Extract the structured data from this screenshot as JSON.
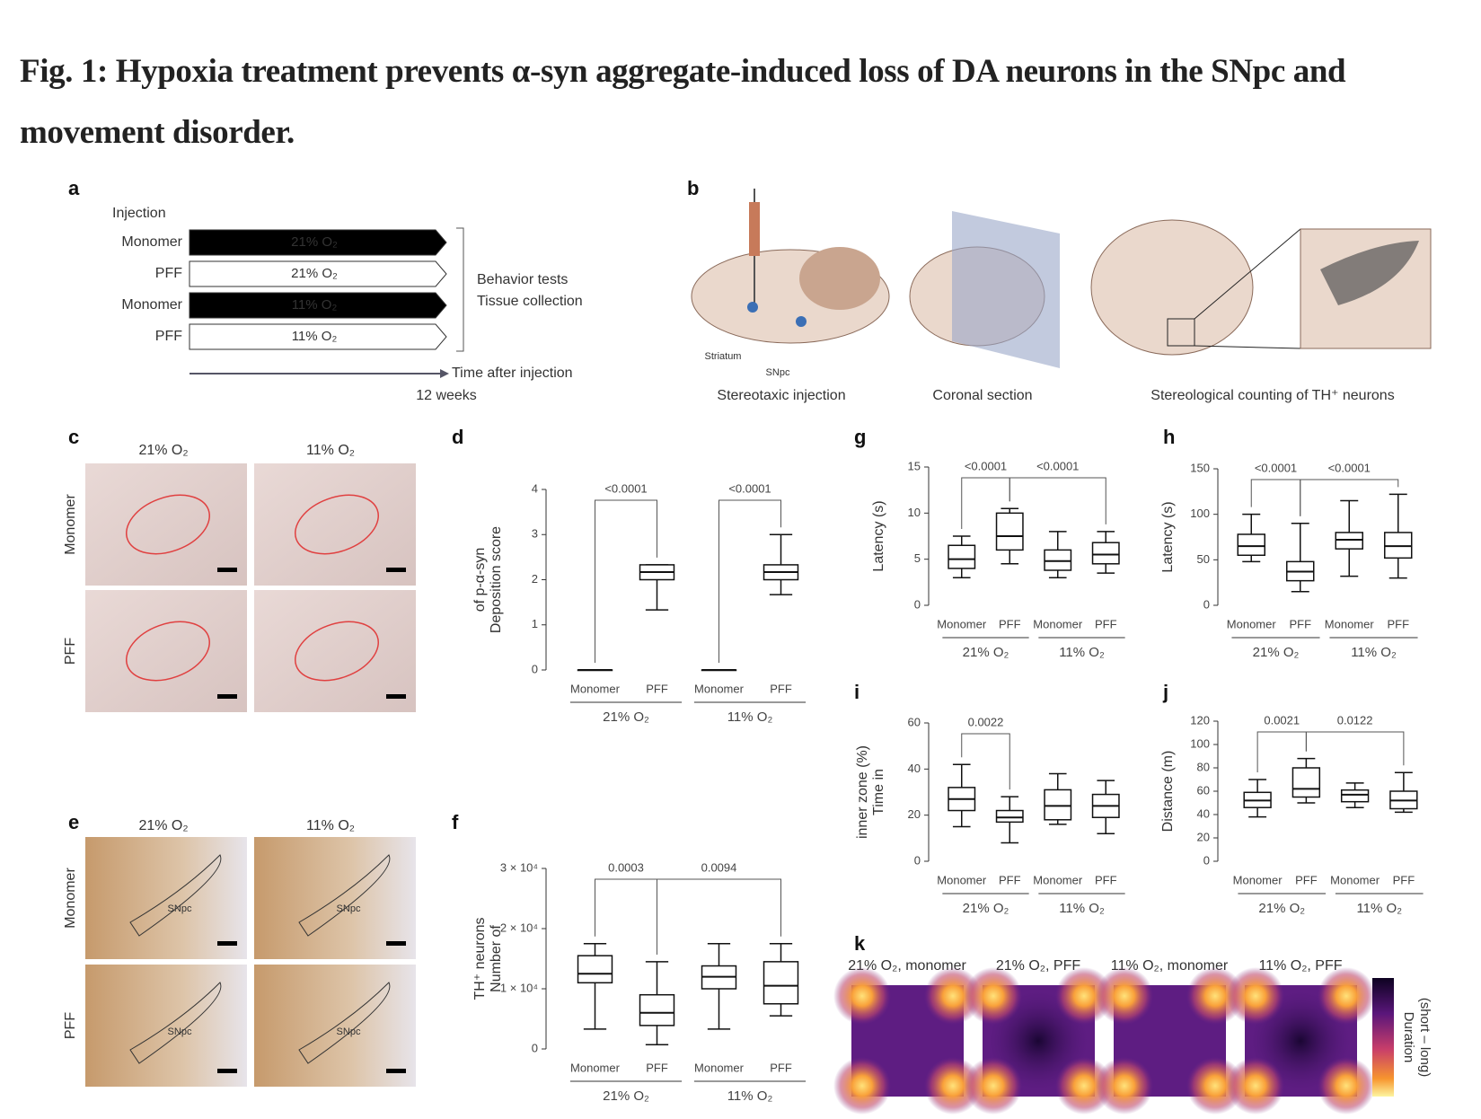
{
  "title": "Fig. 1: Hypoxia treatment prevents α-syn aggregate-induced loss of DA neurons in the SNpc and movement disorder.",
  "panel_letters": [
    "a",
    "b",
    "c",
    "d",
    "e",
    "f",
    "g",
    "h",
    "i",
    "j",
    "k"
  ],
  "panel_a": {
    "heading": "Injection",
    "rows": [
      {
        "injection": "Monomer",
        "condition": "21% O₂"
      },
      {
        "injection": "PFF",
        "condition": "21% O₂"
      },
      {
        "injection": "Monomer",
        "condition": "11% O₂"
      },
      {
        "injection": "PFF",
        "condition": "11% O₂"
      }
    ],
    "outcomes": [
      "Behavior tests",
      "Tissue collection"
    ],
    "time_axis": "Time after injection",
    "time_point": "12 weeks"
  },
  "panel_b": {
    "labels": [
      "Striatum",
      "SNpc"
    ],
    "steps": [
      "Stereotaxic injection",
      "Coronal section",
      "Stereological counting of TH⁺ neurons"
    ]
  },
  "panel_c": {
    "columns": [
      "21% O₂",
      "11% O₂"
    ],
    "rows": [
      "Monomer",
      "PFF"
    ]
  },
  "panel_e": {
    "columns": [
      "21% O₂",
      "11% O₂"
    ],
    "rows": [
      "Monomer",
      "PFF"
    ],
    "region_label": "SNpc"
  },
  "panel_k": {
    "labels": [
      "21% O₂, monomer",
      "21% O₂, PFF",
      "11% O₂, monomer",
      "11% O₂, PFF"
    ],
    "colorbar_label": [
      "Duration",
      "(short – long)"
    ]
  },
  "chart_data": [
    {
      "type": "box",
      "ylabel": [
        "Deposition score",
        "of p-α-syn"
      ],
      "categories": [
        "Monomer",
        "PFF",
        "Monomer",
        "PFF"
      ],
      "groups": [
        "21% O₂",
        "11% O₂"
      ],
      "boxes": [
        {
          "min": 0,
          "q1": 0,
          "median": 0,
          "q3": 0,
          "max": 0
        },
        {
          "min": 1.33,
          "q1": 2.0,
          "median": 2.17,
          "q3": 2.33,
          "max": 2.33
        },
        {
          "min": 0,
          "q1": 0,
          "median": 0,
          "q3": 0,
          "max": 0
        },
        {
          "min": 1.67,
          "q1": 2.0,
          "median": 2.17,
          "q3": 2.33,
          "max": 3.0
        }
      ],
      "annotations": [
        "<0.0001",
        "<0.0001"
      ],
      "ylim": [
        0,
        4
      ],
      "yticks": [
        0,
        1,
        2,
        3,
        4
      ]
    },
    {
      "type": "box",
      "ylabel": [
        "Number of",
        "TH⁺ neurons"
      ],
      "categories": [
        "Monomer",
        "PFF",
        "Monomer",
        "PFF"
      ],
      "groups": [
        "21% O₂",
        "11% O₂"
      ],
      "boxes": [
        {
          "min": 3300,
          "q1": 11000,
          "median": 12500,
          "q3": 15500,
          "max": 17500
        },
        {
          "min": 700,
          "q1": 3900,
          "median": 6000,
          "q3": 9000,
          "max": 14500
        },
        {
          "min": 3300,
          "q1": 10000,
          "median": 12000,
          "q3": 13800,
          "max": 17500
        },
        {
          "min": 5500,
          "q1": 7500,
          "median": 10500,
          "q3": 14500,
          "max": 17500
        }
      ],
      "annotations": [
        "0.0003",
        "0.0094"
      ],
      "ylim": [
        0,
        30000
      ],
      "yticks": [
        0,
        {
          "value": 10000,
          "label": "1 × 10⁴"
        },
        {
          "value": 20000,
          "label": "2 × 10⁴"
        },
        {
          "value": 30000,
          "label": "3 × 10⁴"
        }
      ]
    },
    {
      "type": "box",
      "ylabel": [
        "Latency (s)"
      ],
      "categories": [
        "Monomer",
        "PFF",
        "Monomer",
        "PFF"
      ],
      "groups": [
        "21% O₂",
        "11% O₂"
      ],
      "boxes": [
        {
          "min": 3,
          "q1": 4,
          "median": 5,
          "q3": 6.5,
          "max": 7.5
        },
        {
          "min": 4.5,
          "q1": 6,
          "median": 7.5,
          "q3": 10,
          "max": 10.5
        },
        {
          "min": 3,
          "q1": 3.8,
          "median": 4.8,
          "q3": 6,
          "max": 8
        },
        {
          "min": 3.5,
          "q1": 4.5,
          "median": 5.5,
          "q3": 6.8,
          "max": 8
        }
      ],
      "annotations": [
        "<0.0001",
        "<0.0001"
      ],
      "ylim": [
        0,
        15
      ],
      "yticks": [
        0,
        5,
        10,
        15
      ]
    },
    {
      "type": "box",
      "ylabel": [
        "Latency (s)"
      ],
      "categories": [
        "Monomer",
        "PFF",
        "Monomer",
        "PFF"
      ],
      "groups": [
        "21% O₂",
        "11% O₂"
      ],
      "boxes": [
        {
          "min": 48,
          "q1": 55,
          "median": 65,
          "q3": 78,
          "max": 100
        },
        {
          "min": 15,
          "q1": 27,
          "median": 37,
          "q3": 48,
          "max": 90
        },
        {
          "min": 32,
          "q1": 62,
          "median": 72,
          "q3": 80,
          "max": 115
        },
        {
          "min": 30,
          "q1": 52,
          "median": 65,
          "q3": 80,
          "max": 122
        }
      ],
      "annotations": [
        "<0.0001",
        "<0.0001"
      ],
      "ylim": [
        0,
        150
      ],
      "yticks": [
        0,
        50,
        100,
        150
      ]
    },
    {
      "type": "box",
      "ylabel": [
        "Time in",
        "inner zone (%)"
      ],
      "categories": [
        "Monomer",
        "PFF",
        "Monomer",
        "PFF"
      ],
      "groups": [
        "21% O₂",
        "11% O₂"
      ],
      "boxes": [
        {
          "min": 15,
          "q1": 22,
          "median": 27,
          "q3": 32,
          "max": 42
        },
        {
          "min": 8,
          "q1": 17,
          "median": 19,
          "q3": 22,
          "max": 28
        },
        {
          "min": 16,
          "q1": 18,
          "median": 24,
          "q3": 31,
          "max": 38
        },
        {
          "min": 12,
          "q1": 19,
          "median": 24,
          "q3": 29,
          "max": 35
        }
      ],
      "annotations": [
        "0.0022"
      ],
      "ylim": [
        0,
        60
      ],
      "yticks": [
        0,
        20,
        40,
        60
      ]
    },
    {
      "type": "box",
      "ylabel": [
        "Distance (m)"
      ],
      "categories": [
        "Monomer",
        "PFF",
        "Monomer",
        "PFF"
      ],
      "groups": [
        "21% O₂",
        "11% O₂"
      ],
      "boxes": [
        {
          "min": 38,
          "q1": 46,
          "median": 52,
          "q3": 59,
          "max": 70
        },
        {
          "min": 50,
          "q1": 55,
          "median": 62,
          "q3": 80,
          "max": 88
        },
        {
          "min": 46,
          "q1": 51,
          "median": 57,
          "q3": 61,
          "max": 67
        },
        {
          "min": 42,
          "q1": 45,
          "median": 52,
          "q3": 60,
          "max": 76
        }
      ],
      "annotations": [
        "0.0021",
        "0.0122"
      ],
      "ylim": [
        0,
        120
      ],
      "yticks": [
        0,
        20,
        40,
        60,
        80,
        100,
        120
      ]
    }
  ]
}
